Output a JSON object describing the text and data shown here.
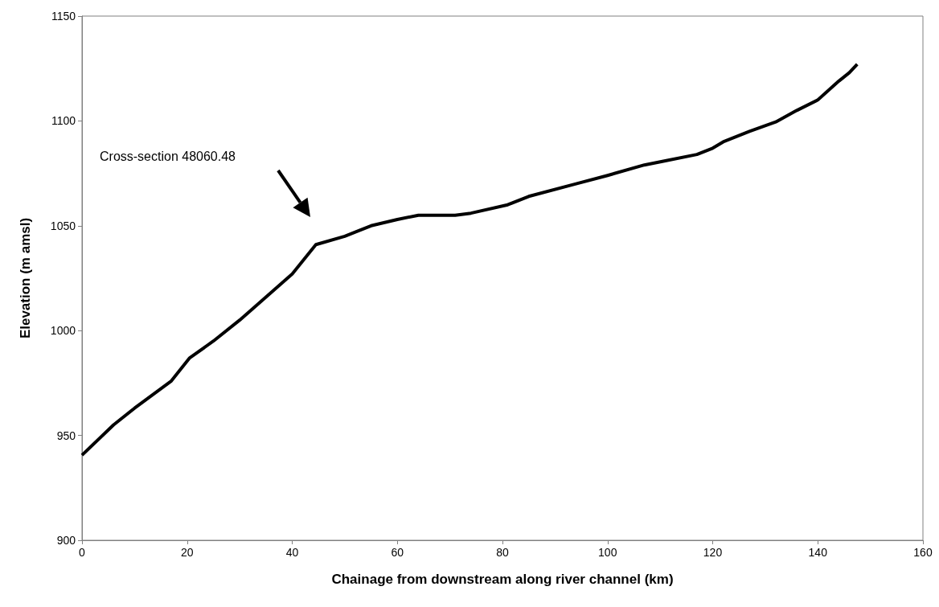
{
  "chart_data": {
    "type": "line",
    "xlabel": "Chainage from downstream along river channel (km)",
    "ylabel": "Elevation (m amsl)",
    "x": [
      0,
      6,
      10,
      17,
      20.5,
      25,
      30,
      35,
      40,
      44.5,
      50,
      52,
      55,
      60,
      64,
      71,
      74,
      81,
      85,
      94,
      100,
      107,
      111,
      117,
      120,
      122,
      127,
      132,
      136,
      140,
      144,
      146,
      147.5
    ],
    "series": [
      {
        "color": "#000000",
        "values": [
          940.6,
          955,
          963,
          976,
          987,
          995,
          1005,
          1016,
          1027,
          1041,
          1045,
          1047,
          1050,
          1053,
          1055,
          1055,
          1056,
          1060,
          1064,
          1070,
          1074,
          1079,
          1081,
          1084,
          1087,
          1090,
          1095,
          1099.5,
          1105,
          1110,
          1119,
          1123,
          1127
        ]
      }
    ],
    "xlim": [
      0,
      160
    ],
    "xticks": [
      0,
      20,
      40,
      60,
      80,
      100,
      120,
      140,
      160
    ],
    "ylim": [
      900,
      1150
    ],
    "yticks": [
      900,
      950,
      1000,
      1050,
      1100,
      1150
    ],
    "grid": false,
    "marker": "none",
    "line_style": "solid",
    "annotations": [
      "Cross-section 48060.48"
    ]
  }
}
